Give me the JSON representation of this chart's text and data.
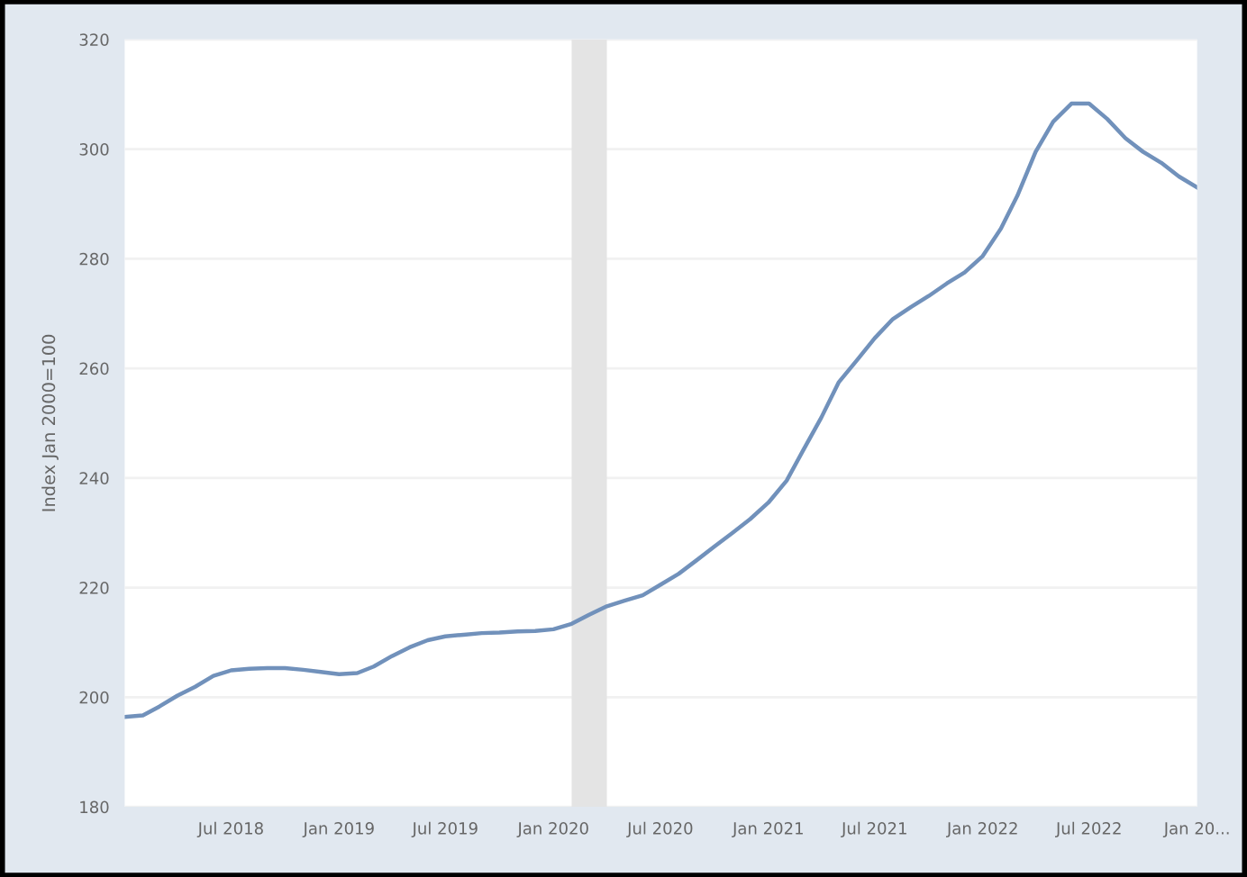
{
  "chart_data": {
    "type": "line",
    "ylabel": "Index Jan 2000=100",
    "x": [
      "2018-01",
      "2018-02",
      "2018-03",
      "2018-04",
      "2018-05",
      "2018-06",
      "2018-07",
      "2018-08",
      "2018-09",
      "2018-10",
      "2018-11",
      "2018-12",
      "2019-01",
      "2019-02",
      "2019-03",
      "2019-04",
      "2019-05",
      "2019-06",
      "2019-07",
      "2019-08",
      "2019-09",
      "2019-10",
      "2019-11",
      "2019-12",
      "2020-01",
      "2020-02",
      "2020-03",
      "2020-04",
      "2020-05",
      "2020-06",
      "2020-07",
      "2020-08",
      "2020-09",
      "2020-10",
      "2020-11",
      "2020-12",
      "2021-01",
      "2021-02",
      "2021-03",
      "2021-04",
      "2021-05",
      "2021-06",
      "2021-07",
      "2021-08",
      "2021-09",
      "2021-10",
      "2021-11",
      "2021-12",
      "2022-01",
      "2022-02",
      "2022-03",
      "2022-04",
      "2022-05",
      "2022-06",
      "2022-07",
      "2022-08",
      "2022-09",
      "2022-10",
      "2022-11",
      "2022-12",
      "2023-01"
    ],
    "series": [
      {
        "color": "#7191bb",
        "values": [
          196.4,
          196.7,
          198.3,
          200.3,
          201.9,
          203.9,
          204.9,
          205.2,
          205.3,
          205.3,
          205.0,
          204.6,
          204.2,
          204.4,
          205.6,
          207.5,
          209.1,
          210.4,
          211.1,
          211.4,
          211.7,
          211.8,
          212.0,
          212.1,
          212.4,
          213.4,
          215.0,
          216.6,
          217.6,
          218.6,
          220.5,
          222.5,
          225.0,
          227.5,
          230.0,
          232.5,
          235.5,
          239.5,
          245.0,
          251.0,
          257.5,
          261.5,
          265.5,
          269.0,
          271.2,
          273.2,
          275.5,
          277.5,
          280.5,
          285.5,
          291.5,
          299.5,
          305.0,
          308.3,
          308.3,
          305.5,
          302.0,
          299.5,
          297.5,
          295.0,
          293.0
        ]
      }
    ],
    "xlim": [
      "2018-01",
      "2023-01"
    ],
    "xticks": [
      {
        "value": "2018-07",
        "label": "Jul 2018"
      },
      {
        "value": "2019-01",
        "label": "Jan 2019"
      },
      {
        "value": "2019-07",
        "label": "Jul 2019"
      },
      {
        "value": "2020-01",
        "label": "Jan 2020"
      },
      {
        "value": "2020-07",
        "label": "Jul 2020"
      },
      {
        "value": "2021-01",
        "label": "Jan 2021"
      },
      {
        "value": "2021-07",
        "label": "Jul 2021"
      },
      {
        "value": "2022-01",
        "label": "Jan 2022"
      },
      {
        "value": "2022-07",
        "label": "Jul 2022"
      },
      {
        "value": "2023-01",
        "label": "Jan 20..."
      }
    ],
    "ylim": [
      180,
      320
    ],
    "yticks": [
      180,
      200,
      220,
      240,
      260,
      280,
      300,
      320
    ],
    "bands": [
      {
        "axis": "x",
        "from": "2020-02",
        "to": "2020-04",
        "color": "#e4e4e4"
      }
    ],
    "grid": "y",
    "marker": "none",
    "line_style": "solid"
  }
}
